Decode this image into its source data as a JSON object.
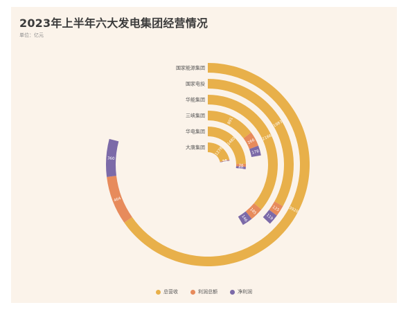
{
  "chart_data": {
    "type": "stacked-radial-bar",
    "title": "2023年上半年六大发电集团经营情况",
    "subtitle": "单位：亿元",
    "categories": [
      "国家能源集团",
      "国家电投",
      "华能集团",
      "三峡集团",
      "华电集团",
      "大唐集团"
    ],
    "series": [
      {
        "name": "总营收",
        "values": [
          3920,
          1983,
          2166,
          891,
          1480,
          1278
        ]
      },
      {
        "name": "利润总额",
        "values": [
          464,
          125,
          185,
          266,
          76,
          28
        ]
      },
      {
        "name": "净利润",
        "values": [
          360,
          119,
          146,
          178,
          60,
          20
        ]
      }
    ],
    "max_value": 6000,
    "colors": [
      "#e8b04a",
      "#e78b5c",
      "#7c6aa8"
    ],
    "legend_position": "bottom"
  }
}
